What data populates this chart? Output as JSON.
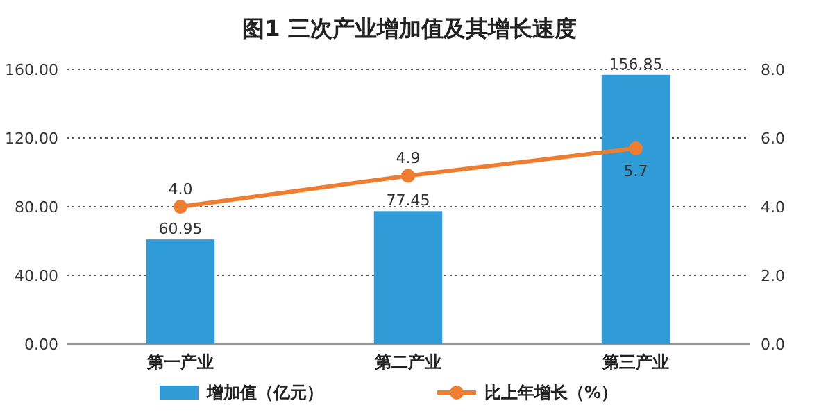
{
  "chart_data": {
    "type": "bar",
    "title": "图1 三次产业增加值及其增长速度",
    "categories": [
      "第一产业",
      "第二产业",
      "第三产业"
    ],
    "series": [
      {
        "name": "增加值（亿元）",
        "color": "#2f9bd7",
        "values": [
          60.95,
          77.45,
          156.85
        ],
        "value_labels": [
          "60.95",
          "77.45",
          "156.85"
        ]
      },
      {
        "name": "比上年增长（%）",
        "type": "line",
        "axis": "y2",
        "color": "#ed7d31",
        "values": [
          4.0,
          4.9,
          5.7
        ],
        "value_labels": [
          "4.0",
          "4.9",
          "5.7"
        ],
        "marker": "circle",
        "line_style": "solid"
      }
    ],
    "ylim": [
      0,
      160
    ],
    "yticks": [
      {
        "value": 0,
        "label": "0.00"
      },
      {
        "value": 40,
        "label": "40.00"
      },
      {
        "value": 80,
        "label": "80.00"
      },
      {
        "value": 120,
        "label": "120.00"
      },
      {
        "value": 160,
        "label": "160.00"
      }
    ],
    "y2lim": [
      0,
      8
    ],
    "y2ticks": [
      {
        "value": 0,
        "label": "0.0"
      },
      {
        "value": 2,
        "label": "2.0"
      },
      {
        "value": 4,
        "label": "4.0"
      },
      {
        "value": 6,
        "label": "6.0"
      },
      {
        "value": 8,
        "label": "8.0"
      }
    ],
    "grid": "y",
    "legend": "bottom"
  }
}
